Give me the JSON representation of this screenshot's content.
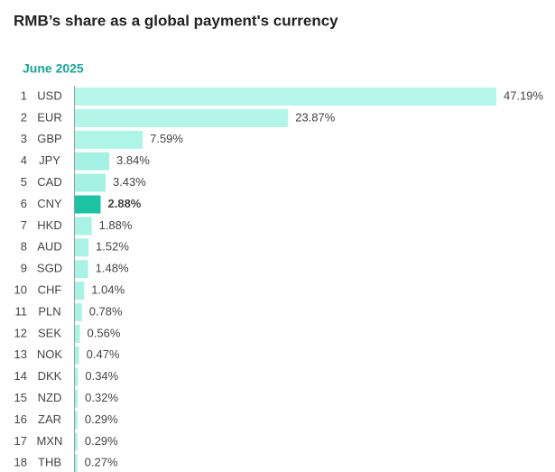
{
  "chart_data": {
    "type": "bar",
    "orientation": "horizontal",
    "title": "RMB’s share as a global payment's currency",
    "subtitle": "June 2025",
    "ranks": [
      1,
      2,
      3,
      4,
      5,
      6,
      7,
      8,
      9,
      10,
      11,
      12,
      13,
      14,
      15,
      16,
      17,
      18
    ],
    "categories": [
      "USD",
      "EUR",
      "GBP",
      "JPY",
      "CAD",
      "CNY",
      "HKD",
      "AUD",
      "SGD",
      "CHF",
      "PLN",
      "SEK",
      "NOK",
      "DKK",
      "NZD",
      "ZAR",
      "MXN",
      "THB"
    ],
    "values": [
      47.19,
      23.87,
      7.59,
      3.84,
      3.43,
      2.88,
      1.88,
      1.52,
      1.48,
      1.04,
      0.78,
      0.56,
      0.47,
      0.34,
      0.32,
      0.29,
      0.29,
      0.27
    ],
    "value_labels": [
      "47.19%",
      "23.87%",
      "7.59%",
      "3.84%",
      "3.43%",
      "2.88%",
      "1.88%",
      "1.52%",
      "1.48%",
      "1.04%",
      "0.78%",
      "0.56%",
      "0.47%",
      "0.34%",
      "0.32%",
      "0.29%",
      "0.29%",
      "0.27%"
    ],
    "colors": [
      "#b5f6ea",
      "#b3f5e9",
      "#aef4e7",
      "#a4f2e3",
      "#a4f2e3",
      "#1dc4a4",
      "#a9f3e5",
      "#a9f3e5",
      "#a9f3e5",
      "#a9f3e5",
      "#a9f3e5",
      "#a9f3e5",
      "#a9f3e5",
      "#a9f3e5",
      "#a9f3e5",
      "#a9f3e5",
      "#a9f3e5",
      "#a9f3e5"
    ]
  }
}
